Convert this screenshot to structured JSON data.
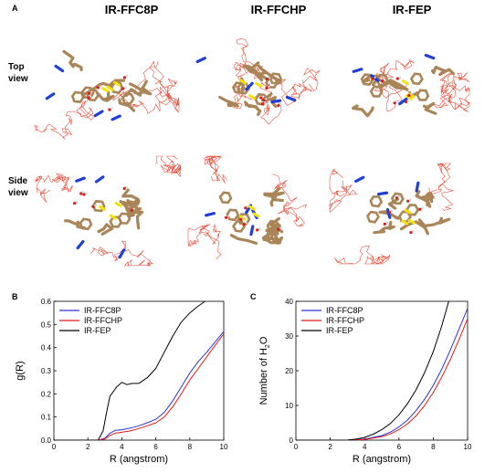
{
  "panel_a": {
    "letter": "A",
    "molecules": [
      "IR-FFC8P",
      "IR-FFCHP",
      "IR-FEP"
    ],
    "rows": [
      {
        "line1": "Top",
        "line2": "view"
      },
      {
        "line1": "Side",
        "line2": "view"
      }
    ]
  },
  "colors": {
    "backbone": "#a98558",
    "solvent": "#e8533f",
    "nitrogen": "#1f3fd6",
    "sulfur": "#f2e20a",
    "oxygen": "#d81e1e"
  },
  "chart_data": [
    {
      "panel_letter": "B",
      "type": "line",
      "xlabel": "R (angstrom)",
      "ylabel": "g(R)",
      "xlim": [
        0,
        10
      ],
      "ylim": [
        0,
        0.6
      ],
      "xticks": [
        "0",
        "2",
        "4",
        "6",
        "8",
        "10"
      ],
      "yticks": [
        "0.0",
        "0.1",
        "0.2",
        "0.3",
        "0.4",
        "0.5",
        "0.6"
      ],
      "legend_position": "top-left",
      "series": [
        {
          "name": "IR-FFC8P",
          "color": "#2b35d6",
          "x": [
            0,
            2.6,
            3.0,
            3.3,
            3.6,
            4.0,
            4.5,
            5.0,
            5.5,
            6.0,
            6.5,
            7.0,
            7.5,
            8.0,
            8.5,
            9.0,
            9.5,
            10.0
          ],
          "y": [
            0,
            0,
            0.008,
            0.03,
            0.042,
            0.045,
            0.052,
            0.062,
            0.075,
            0.09,
            0.12,
            0.17,
            0.23,
            0.29,
            0.34,
            0.38,
            0.425,
            0.47
          ]
        },
        {
          "name": "IR-FFCHP",
          "color": "#e01b1b",
          "x": [
            0,
            2.6,
            3.0,
            3.3,
            3.6,
            4.0,
            4.5,
            5.0,
            5.5,
            6.0,
            6.5,
            7.0,
            7.5,
            8.0,
            8.5,
            9.0,
            9.5,
            10.0
          ],
          "y": [
            0,
            0,
            0.005,
            0.02,
            0.03,
            0.034,
            0.04,
            0.05,
            0.062,
            0.075,
            0.1,
            0.145,
            0.2,
            0.26,
            0.31,
            0.36,
            0.41,
            0.46
          ]
        },
        {
          "name": "IR-FEP",
          "color": "#000000",
          "x": [
            0,
            2.6,
            2.9,
            3.1,
            3.3,
            3.5,
            3.7,
            4.0,
            4.3,
            4.6,
            5.0,
            5.5,
            6.0,
            6.5,
            7.0,
            7.5,
            8.0,
            8.5,
            8.9
          ],
          "y": [
            0,
            0,
            0.04,
            0.12,
            0.19,
            0.21,
            0.23,
            0.25,
            0.24,
            0.245,
            0.245,
            0.27,
            0.31,
            0.38,
            0.45,
            0.51,
            0.55,
            0.58,
            0.6
          ]
        }
      ]
    },
    {
      "panel_letter": "C",
      "type": "line",
      "xlabel": "R (angstrom)",
      "ylabel_main": "Number of H",
      "ylabel_sub": "2",
      "ylabel_end": "O",
      "xlim": [
        0,
        10
      ],
      "ylim": [
        0,
        40
      ],
      "xticks": [
        "0",
        "2",
        "4",
        "6",
        "8",
        "10"
      ],
      "yticks": [
        "0",
        "10",
        "20",
        "30",
        "40"
      ],
      "legend_position": "top-left",
      "series": [
        {
          "name": "IR-FFC8P",
          "color": "#2b35d6",
          "x": [
            0,
            3.0,
            4.0,
            5.0,
            5.5,
            6.0,
            6.5,
            7.0,
            7.5,
            8.0,
            8.5,
            9.0,
            9.5,
            10.0
          ],
          "y": [
            0,
            0,
            0.3,
            1.3,
            2.3,
            3.8,
            5.8,
            8.5,
            11.8,
            15.8,
            20.5,
            26,
            32,
            38
          ]
        },
        {
          "name": "IR-FFCHP",
          "color": "#e01b1b",
          "x": [
            0,
            3.0,
            4.0,
            5.0,
            5.5,
            6.0,
            6.5,
            7.0,
            7.5,
            8.0,
            8.5,
            9.0,
            9.5,
            10.0
          ],
          "y": [
            0,
            0,
            0.2,
            1.0,
            1.8,
            3.0,
            4.7,
            7.0,
            10.0,
            13.7,
            18.2,
            23.3,
            29,
            35
          ]
        },
        {
          "name": "IR-FEP",
          "color": "#000000",
          "x": [
            0,
            3.0,
            3.5,
            4.0,
            4.5,
            5.0,
            5.5,
            6.0,
            6.5,
            7.0,
            7.5,
            8.0,
            8.5,
            8.9
          ],
          "y": [
            0,
            0,
            0.3,
            0.8,
            1.7,
            3.0,
            4.8,
            7.3,
            10.5,
            14.5,
            19.5,
            25.5,
            33,
            40
          ]
        }
      ]
    }
  ]
}
